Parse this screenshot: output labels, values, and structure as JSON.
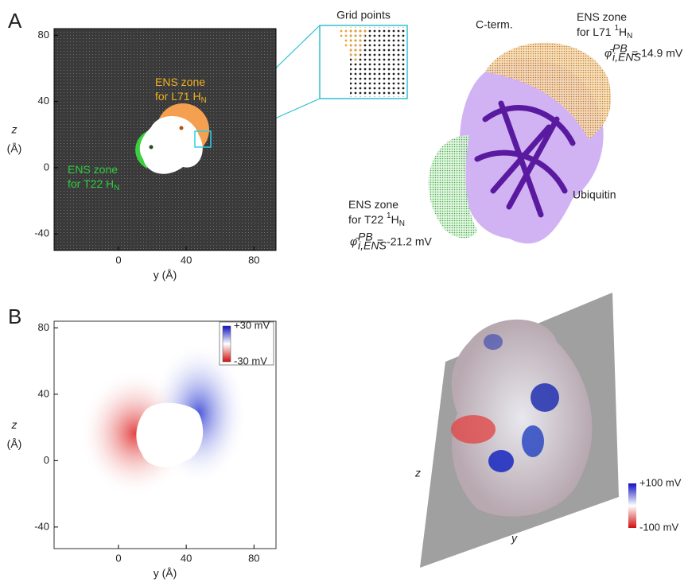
{
  "chart_data": [
    {
      "type": "heatmap",
      "xlabel": "y (Å)",
      "ylabel": [
        "z",
        "(Å)"
      ],
      "xlim": [
        -38,
        93
      ],
      "ylim": [
        -50,
        84
      ],
      "xticks": [
        0,
        40,
        80
      ],
      "yticks": [
        -40,
        0,
        40,
        80
      ],
      "annotations": [
        {
          "lines": [
            "ENS zone",
            "for L71 H"
          ],
          "sub": "N",
          "color": "#f0b020"
        },
        {
          "lines": [
            "ENS zone",
            "for T22 H"
          ],
          "sub": "N",
          "color": "#2ecc40"
        }
      ]
    },
    {
      "type": "heatmap",
      "xlabel": "y (Å)",
      "ylabel": [
        "z",
        "(Å)"
      ],
      "xlim": [
        -38,
        93
      ],
      "ylim": [
        -53,
        84
      ],
      "xticks": [
        0,
        40,
        80
      ],
      "yticks": [
        -40,
        0,
        40,
        80
      ],
      "clim": [
        -30,
        30
      ],
      "cticks": [
        {
          "value": 30,
          "label": "+30 mV"
        },
        {
          "value": -30,
          "label": "-30 mV"
        }
      ]
    }
  ],
  "panel_labels": [
    "A",
    "B"
  ],
  "structure_a": {
    "inset_title": "Grid points",
    "cterm": "C-term.",
    "protein": "Ubiquitin",
    "zones": [
      {
        "lines": [
          "ENS zone",
          "for L71 "
        ],
        "sup": "1",
        "h": "H",
        "sub": "N",
        "phi": "φ̄",
        "phi_sup": "PB",
        "phi_sub": "i,ENS",
        "value_text": "= 14.9 mV"
      },
      {
        "lines": [
          "ENS zone",
          "for T22 "
        ],
        "sup": "1",
        "h": "H",
        "sub": "N",
        "phi": "φ̄",
        "phi_sup": "PB",
        "phi_sub": "i,ENS",
        "value_text": "= -21.2 mV"
      }
    ]
  },
  "structure_b": {
    "axis_z": "z",
    "axis_y": "y",
    "clim": [
      -100,
      100
    ],
    "cticks": [
      {
        "value": 100,
        "label": "+100 mV"
      },
      {
        "value": -100,
        "label": "-100 mV"
      }
    ]
  }
}
